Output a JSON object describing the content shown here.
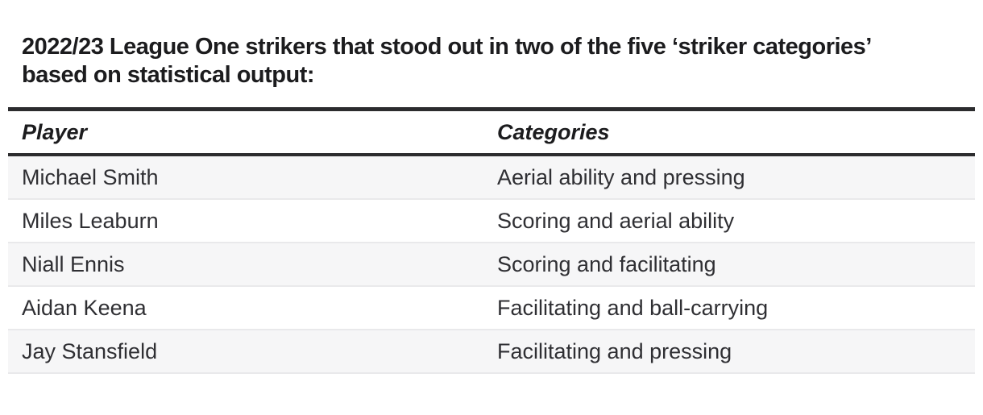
{
  "title": {
    "line1": "2022/23 League One strikers that stood out in two of the five ‘striker categories’",
    "line2": "based on statistical output:"
  },
  "table": {
    "columns": [
      "Player",
      "Categories"
    ],
    "rows": [
      {
        "player": "Michael Smith",
        "categories": "Aerial ability and pressing"
      },
      {
        "player": "Miles Leaburn",
        "categories": "Scoring and aerial ability"
      },
      {
        "player": "Niall Ennis",
        "categories": "Scoring and facilitating"
      },
      {
        "player": "Aidan Keena",
        "categories": "Facilitating and ball-carrying"
      },
      {
        "player": "Jay Stansfield",
        "categories": "Facilitating and pressing"
      }
    ]
  },
  "colors": {
    "rule_dark": "#2c2c2e",
    "row_stripe": "#f6f6f7",
    "row_border": "#e9e9eb",
    "title_text": "#1c1c1e",
    "body_text": "#2f2f33",
    "background": "#ffffff"
  }
}
